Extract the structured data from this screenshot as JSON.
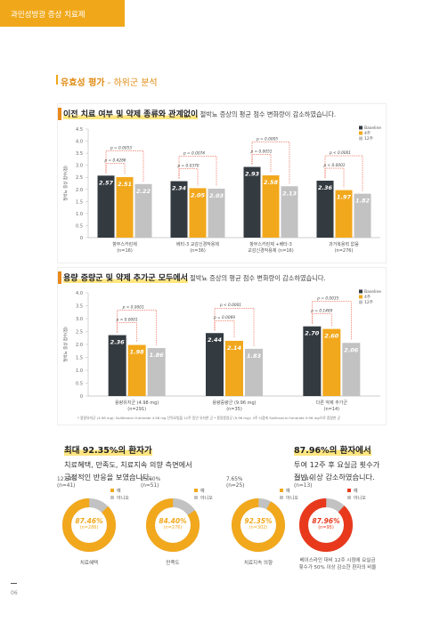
{
  "header": {
    "tab": "과민성방광 증상 치료제"
  },
  "section": {
    "title": "유효성 평가",
    "subtitle": " - 하위군 분석"
  },
  "chart1": {
    "heading_highlight": "이전 치료 여부 및 약제 종류와 관계없이",
    "heading_rest": " 절박뇨 증상의 평균 점수 변화량이 감소하였습니다."
  },
  "chart2": {
    "heading_highlight": "용량 증량군 및 약제 추가군 모두에서",
    "heading_rest": " 절박뇨 증상의 평균 점수 변화량이 감소하였습니다.",
    "footnote": "* 용량유지군 (4.98 mg): Solifenacin fumarate 4.98 mg 단독요법을 12주 동안 유지한 군   * 용량증량군 (9.96 mg): 4주 시점에 Solifenacin fumarate 9.96 mg으로 증량한 군"
  },
  "colors": {
    "baseline": "#333a40",
    "w4": "#f2a81c",
    "w12": "#c2c2c2",
    "accent": "#f0a81a",
    "red": "#e8391d"
  },
  "chart_data": [
    {
      "type": "bar",
      "ylabel": "절박뇨 증상 점수(점)",
      "ylim": [
        0,
        4.5
      ],
      "yticks": [
        "0",
        "0.5",
        "1.0",
        "1.5",
        "2.0",
        "2.5",
        "3.0",
        "3.5",
        "4.0",
        "4.5"
      ],
      "legend": [
        "Baseline",
        "4주",
        "12주"
      ],
      "categories": [
        {
          "line1": "항무스카린제",
          "line2": "(n=16)"
        },
        {
          "line1": "베타-3 교감신경작용제",
          "line2": "(n=36)"
        },
        {
          "line1": "항무스카린제 +베타-3",
          "line2": "교감신경작용제 (n=16)"
        },
        {
          "line1": "과거복용력 없음",
          "line2": "(n=276)"
        }
      ],
      "series": [
        {
          "name": "Baseline",
          "values": [
            2.57,
            2.34,
            2.93,
            2.36
          ],
          "labels": [
            "2.57",
            "2.34",
            "2.93",
            "2.36"
          ]
        },
        {
          "name": "4주",
          "values": [
            2.51,
            2.05,
            2.58,
            1.97
          ],
          "labels": [
            "2.51",
            "2.05",
            "2.58",
            "1.97"
          ]
        },
        {
          "name": "12주",
          "values": [
            2.22,
            2.03,
            2.13,
            1.82
          ],
          "labels": [
            "2.22",
            "2.03",
            "2.13",
            "1.82"
          ]
        }
      ],
      "pvalues": [
        {
          "group": 0,
          "outer": "p = 0.0053",
          "inner": "p = 0.4286"
        },
        {
          "group": 1,
          "outer": "p = 0.0074",
          "inner": "p = 0.0370"
        },
        {
          "group": 2,
          "outer": "p = 0.0005",
          "inner": "p = 0.0051"
        },
        {
          "group": 3,
          "outer": "p < 0.0001",
          "inner": "p < 0.0001"
        }
      ]
    },
    {
      "type": "bar",
      "ylabel": "절박뇨 증상 점수(점)",
      "ylim": [
        0,
        4.0
      ],
      "yticks": [
        "0",
        "0.5",
        "1.0",
        "1.5",
        "2.0",
        "2.5",
        "3.0",
        "3.5",
        "4.0"
      ],
      "legend": [
        "Baseline",
        "4주",
        "12주"
      ],
      "categories": [
        {
          "line1": "용량유지군 (4.98 mg)",
          "line2": "(n=291)"
        },
        {
          "line1": "용량증량군 (9.96 mg)",
          "line2": "(n=35)"
        },
        {
          "line1": "다른 약제 추가군",
          "line2": "(n=14)"
        }
      ],
      "series": [
        {
          "name": "Baseline",
          "values": [
            2.36,
            2.44,
            2.7
          ],
          "labels": [
            "2.36",
            "2.44",
            "2.70"
          ]
        },
        {
          "name": "4주",
          "values": [
            1.98,
            2.14,
            2.6
          ],
          "labels": [
            "1.98",
            "2.14",
            "2.60"
          ]
        },
        {
          "name": "12주",
          "values": [
            1.86,
            1.83,
            2.06
          ],
          "labels": [
            "1.86",
            "1.83",
            "2.06"
          ]
        }
      ],
      "pvalues": [
        {
          "group": 0,
          "outer": "p < 0.0001",
          "inner": "p < 0.0001"
        },
        {
          "group": 1,
          "outer": "p < 0.0001",
          "inner": "p = 0.0069"
        },
        {
          "group": 2,
          "outer": "p = 0.0035",
          "inner": "p = 0.1489"
        }
      ]
    }
  ],
  "bottom_left": {
    "title": "최대 92.35%의 환자가",
    "line1": "치료혜택, 만족도, 치료지속 의향 측면에서",
    "line2": "긍정적인 반응을 보였습니다."
  },
  "bottom_right": {
    "title": "87.96%의 환자에서",
    "line1": "투여 12주 후 요실금 횟수가",
    "line2": "절반 이상 감소하였습니다."
  },
  "donuts": [
    {
      "no_pct": "12.54%",
      "no_n": "(n=41)",
      "yes_pct": "87.46%",
      "yes_n": "(n=286)",
      "yes_value": 87.46,
      "caption": "치료혜택",
      "legend_yes": "예",
      "legend_no": "아니오"
    },
    {
      "no_pct": "15.60%",
      "no_n": "(n=51)",
      "yes_pct": "84.40%",
      "yes_n": "(n=276)",
      "yes_value": 84.4,
      "caption": "만족도",
      "legend_yes": "예",
      "legend_no": "아니오"
    },
    {
      "no_pct": "7.65%",
      "no_n": "(n=25)",
      "yes_pct": "92.35%",
      "yes_n": "(n=302)",
      "yes_value": 92.35,
      "caption": "치료지속 의향",
      "legend_yes": "예",
      "legend_no": "아니오"
    },
    {
      "no_pct": "12.04%",
      "no_n": "(n=13)",
      "yes_pct": "87.96%",
      "yes_n": "(n=95)",
      "yes_value": 87.96,
      "caption": "베이스라인 대비 12주 시점에 요실금",
      "caption2": "횟수가 50% 이상 감소한 환자의 비율",
      "legend_yes": "예",
      "legend_no": "아니오"
    }
  ],
  "page": {
    "number": "06"
  }
}
